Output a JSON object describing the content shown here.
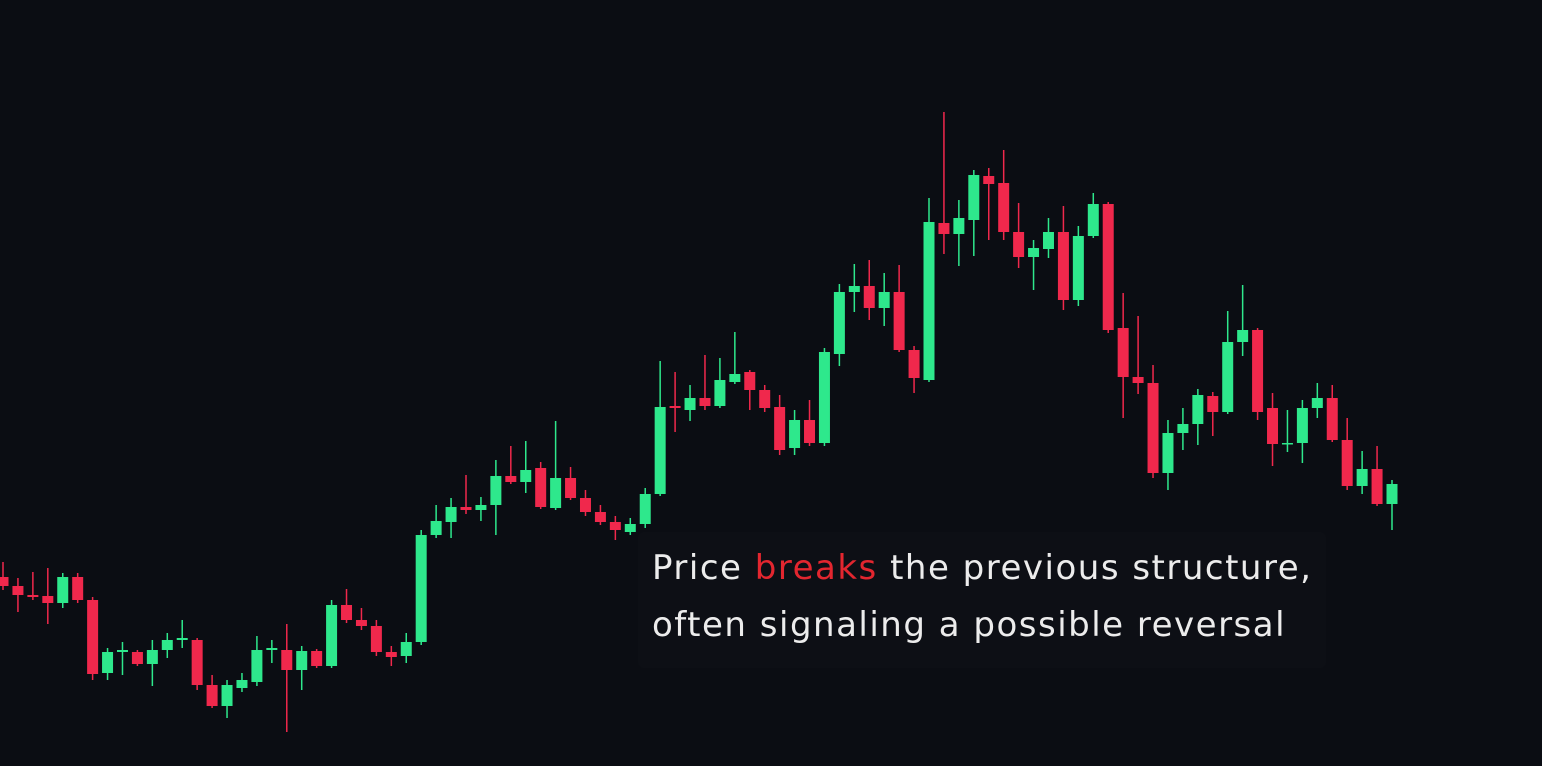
{
  "chart_data": {
    "type": "candlestick",
    "up_color": "#2ee88c",
    "down_color": "#f0284c",
    "ylim": [
      0,
      766
    ],
    "open": [
      189,
      180,
      171,
      170,
      163,
      189,
      166,
      93,
      114,
      114,
      102,
      116,
      126,
      126,
      81,
      60,
      78,
      84,
      116,
      116,
      96,
      115,
      100,
      161,
      146,
      140,
      114,
      110,
      124,
      231,
      244,
      259,
      256,
      261,
      290,
      284,
      298,
      258,
      288,
      268,
      254,
      244,
      234,
      242,
      272,
      360,
      356,
      368,
      360,
      384,
      394,
      376,
      359,
      318,
      346,
      323,
      412,
      474,
      480,
      458,
      474,
      416,
      386,
      543,
      532,
      546,
      590,
      583,
      534,
      509,
      517,
      534,
      466,
      530,
      562,
      438,
      389,
      383,
      293,
      333,
      342,
      370,
      354,
      424,
      436,
      358,
      322,
      323,
      358,
      368,
      326,
      280,
      297,
      262
    ],
    "high": [
      204,
      188,
      194,
      198,
      193,
      193,
      169,
      118,
      124,
      116,
      126,
      133,
      146,
      128,
      91,
      86,
      93,
      130,
      126,
      142,
      120,
      117,
      166,
      177,
      158,
      146,
      120,
      133,
      236,
      261,
      268,
      291,
      269,
      306,
      320,
      325,
      304,
      345,
      299,
      276,
      261,
      250,
      248,
      278,
      405,
      394,
      381,
      411,
      408,
      434,
      396,
      381,
      371,
      356,
      366,
      418,
      482,
      502,
      506,
      493,
      501,
      420,
      568,
      654,
      566,
      596,
      598,
      616,
      563,
      526,
      548,
      560,
      540,
      573,
      564,
      473,
      450,
      401,
      346,
      358,
      377,
      374,
      455,
      481,
      438,
      373,
      356,
      366,
      383,
      381,
      348,
      315,
      320,
      286
    ],
    "low": [
      176,
      154,
      166,
      142,
      158,
      163,
      86,
      86,
      91,
      100,
      80,
      108,
      118,
      76,
      58,
      48,
      74,
      80,
      103,
      34,
      76,
      98,
      98,
      143,
      136,
      110,
      100,
      103,
      121,
      228,
      228,
      252,
      245,
      231,
      282,
      273,
      257,
      256,
      266,
      250,
      241,
      226,
      231,
      238,
      270,
      334,
      345,
      356,
      358,
      382,
      356,
      354,
      311,
      311,
      320,
      320,
      400,
      454,
      446,
      440,
      414,
      373,
      384,
      512,
      500,
      510,
      526,
      526,
      498,
      476,
      508,
      456,
      460,
      528,
      433,
      348,
      372,
      288,
      276,
      316,
      321,
      330,
      352,
      410,
      346,
      300,
      314,
      303,
      348,
      324,
      276,
      272,
      260,
      236
    ],
    "close": [
      180,
      171,
      169,
      163,
      189,
      166,
      92,
      114,
      116,
      102,
      116,
      126,
      128,
      81,
      60,
      81,
      86,
      116,
      118,
      96,
      115,
      100,
      161,
      146,
      140,
      114,
      109,
      124,
      231,
      245,
      259,
      256,
      261,
      290,
      284,
      296,
      259,
      288,
      268,
      254,
      244,
      236,
      242,
      272,
      359,
      358,
      368,
      360,
      386,
      392,
      376,
      358,
      316,
      346,
      323,
      414,
      474,
      480,
      458,
      474,
      416,
      388,
      544,
      532,
      548,
      591,
      582,
      534,
      509,
      518,
      534,
      466,
      530,
      562,
      436,
      389,
      383,
      293,
      333,
      342,
      371,
      354,
      424,
      436,
      354,
      322,
      323,
      358,
      368,
      326,
      280,
      297,
      262,
      282
    ],
    "annotation": {
      "lines": [
        [
          "Price",
          "breaks",
          "the previous structure,"
        ],
        [
          "often signaling a possible reversal"
        ]
      ],
      "highlight_color": "#e3262f"
    }
  }
}
